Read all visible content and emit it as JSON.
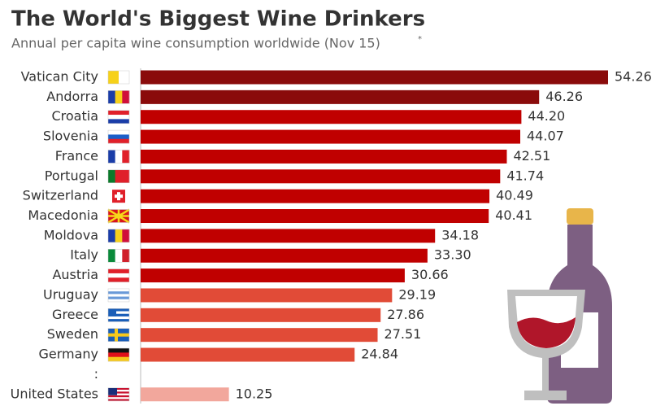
{
  "chart_data": {
    "type": "bar",
    "orientation": "horizontal",
    "title": "The World's Biggest Wine Drinkers",
    "subtitle": "Annual per capita wine consumption worldwide (Nov 15)",
    "subtitle_marker": "*",
    "categories": [
      "Vatican City",
      "Andorra",
      "Croatia",
      "Slovenia",
      "France",
      "Portugal",
      "Switzerland",
      "Macedonia",
      "Moldova",
      "Italy",
      "Austria",
      "Uruguay",
      "Greece",
      "Sweden",
      "Germany",
      ":",
      "United States"
    ],
    "values": [
      54.26,
      46.26,
      44.2,
      44.07,
      42.51,
      41.74,
      40.49,
      40.41,
      34.18,
      33.3,
      30.66,
      29.19,
      27.86,
      27.51,
      24.84,
      null,
      10.25
    ],
    "value_labels": [
      "54.26",
      "46.26",
      "44.20",
      "44.07",
      "42.51",
      "41.74",
      "40.49",
      "40.41",
      "34.18",
      "33.30",
      "30.66",
      "29.19",
      "27.86",
      "27.51",
      "24.84",
      null,
      "10.25"
    ],
    "colors": [
      "#8a0b0b",
      "#8a0b0b",
      "#c00000",
      "#c00000",
      "#c00000",
      "#c00000",
      "#c00000",
      "#c00000",
      "#c00000",
      "#c00000",
      "#c00000",
      "#e14b37",
      "#e14b37",
      "#e14b37",
      "#e14b37",
      null,
      "#f2a79c"
    ]
  }
}
